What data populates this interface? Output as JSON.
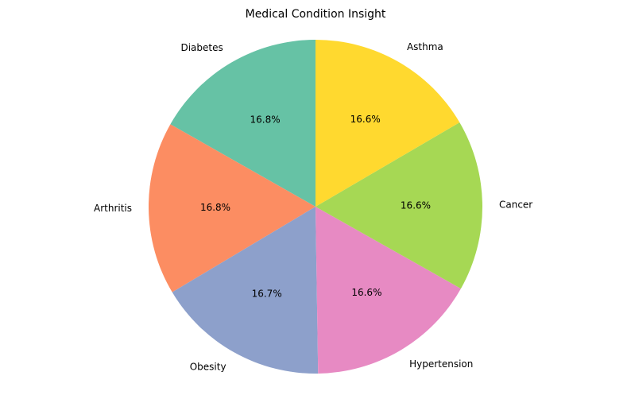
{
  "chart_data": {
    "type": "pie",
    "title": "Medical Condition Insight",
    "categories": [
      "Diabetes",
      "Arthritis",
      "Obesity",
      "Hypertension",
      "Cancer",
      "Asthma"
    ],
    "values": [
      16.8,
      16.8,
      16.7,
      16.6,
      16.6,
      16.6
    ],
    "labels": [
      "16.8%",
      "16.8%",
      "16.7%",
      "16.6%",
      "16.6%",
      "16.6%"
    ],
    "colors": [
      "#66c2a5",
      "#fc8d62",
      "#8da0cb",
      "#e78ac3",
      "#a6d854",
      "#ffd92f"
    ],
    "start_angle": 90,
    "direction": "counterclockwise",
    "legend": "none"
  }
}
